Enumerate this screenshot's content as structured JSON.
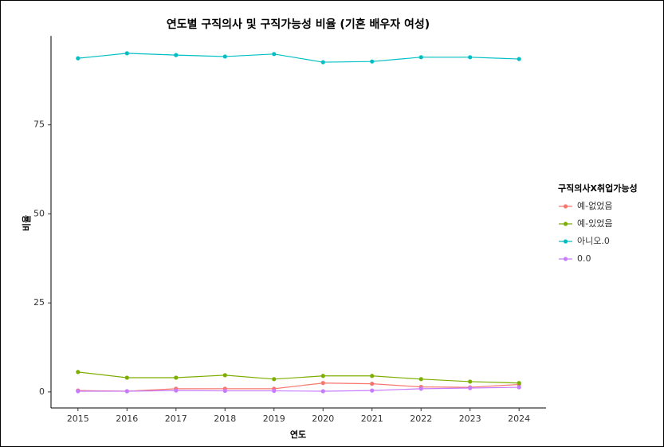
{
  "chart_data": {
    "type": "line",
    "title": "연도별 구직의사 및 구직가능성 비율 (기혼 배우자 여성)",
    "x_label": "연도",
    "y_label": "비율",
    "legend_title": "구직의사X취업가능성",
    "x": [
      2015,
      2016,
      2017,
      2018,
      2019,
      2020,
      2021,
      2022,
      2023,
      2024
    ],
    "series": [
      {
        "name": "예-없었음",
        "color": "#F8766D",
        "values": [
          0.4,
          0.2,
          0.9,
          0.9,
          0.9,
          2.5,
          2.3,
          1.4,
          1.3,
          2.1
        ]
      },
      {
        "name": "예-있었음",
        "color": "#7CAE00",
        "values": [
          5.6,
          4.0,
          4.0,
          4.7,
          3.6,
          4.5,
          4.5,
          3.6,
          2.9,
          2.5
        ]
      },
      {
        "name": "아니오.0",
        "color": "#00BFC4",
        "values": [
          93.7,
          95.1,
          94.6,
          94.2,
          94.9,
          92.6,
          92.8,
          94.0,
          94.0,
          93.5
        ]
      },
      {
        "name": "0.0",
        "color": "#C77CFF",
        "values": [
          0.2,
          0.2,
          0.4,
          0.3,
          0.3,
          0.2,
          0.4,
          0.9,
          1.1,
          1.3
        ]
      }
    ],
    "xlim": [
      2014.45,
      2024.55
    ],
    "xticks": [
      2015,
      2016,
      2017,
      2018,
      2019,
      2020,
      2021,
      2022,
      2023,
      2024
    ],
    "ylim": [
      -4.5,
      100
    ],
    "yticks": [
      0,
      25,
      50,
      75
    ],
    "grid": false,
    "legend": "right"
  }
}
